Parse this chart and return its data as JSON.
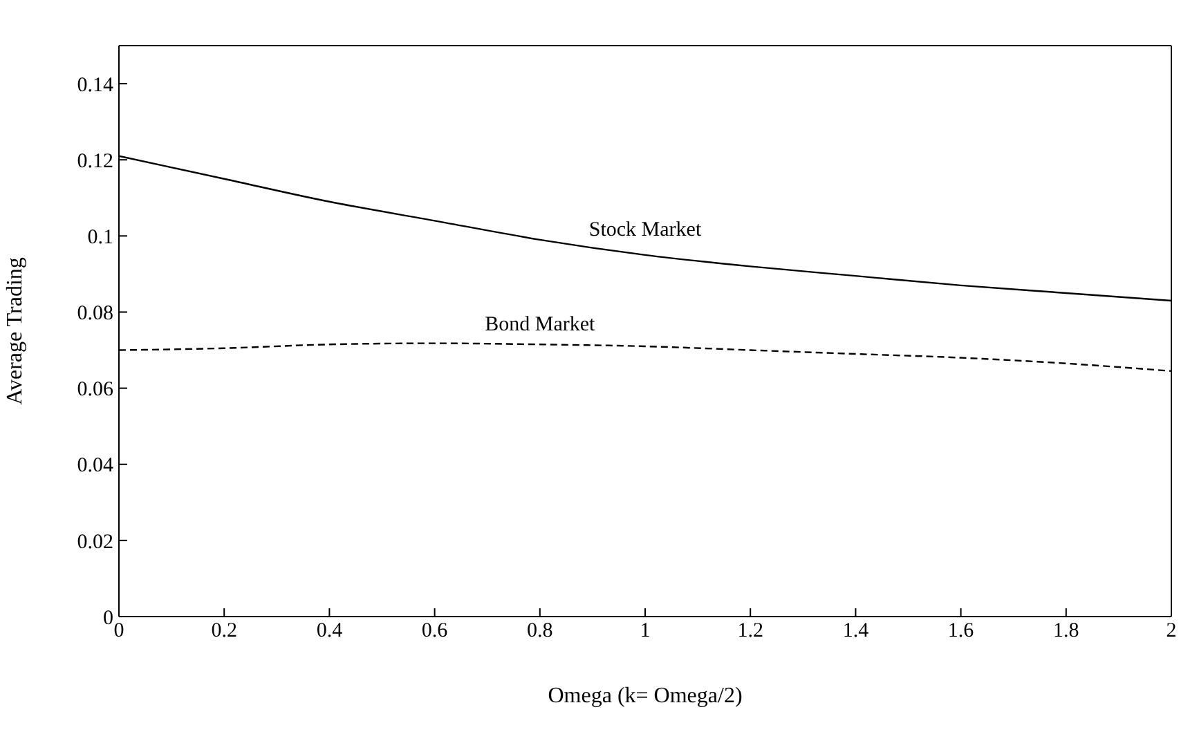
{
  "chart_data": {
    "type": "line",
    "xlabel": "Omega (k= Omega/2)",
    "ylabel": "Average Trading",
    "x": [
      0,
      0.2,
      0.4,
      0.6,
      0.8,
      1.0,
      1.2,
      1.4,
      1.6,
      1.8,
      2.0
    ],
    "series": [
      {
        "name": "Stock Market",
        "color": "#000000",
        "line_style": "solid",
        "values": [
          0.121,
          0.115,
          0.109,
          0.104,
          0.099,
          0.095,
          0.092,
          0.0895,
          0.087,
          0.085,
          0.083
        ]
      },
      {
        "name": "Bond Market",
        "color": "#000000",
        "line_style": "dashed",
        "values": [
          0.07,
          0.0705,
          0.0715,
          0.0718,
          0.0715,
          0.071,
          0.07,
          0.069,
          0.068,
          0.0665,
          0.0645
        ]
      }
    ],
    "xlim": [
      0,
      2
    ],
    "xticks": [
      0,
      0.2,
      0.4,
      0.6,
      0.8,
      1,
      1.2,
      1.4,
      1.6,
      1.8,
      2
    ],
    "ylim": [
      0,
      0.15
    ],
    "yticks": [
      0,
      0.02,
      0.04,
      0.06,
      0.08,
      0.1,
      0.12,
      0.14
    ],
    "marker": "none"
  }
}
